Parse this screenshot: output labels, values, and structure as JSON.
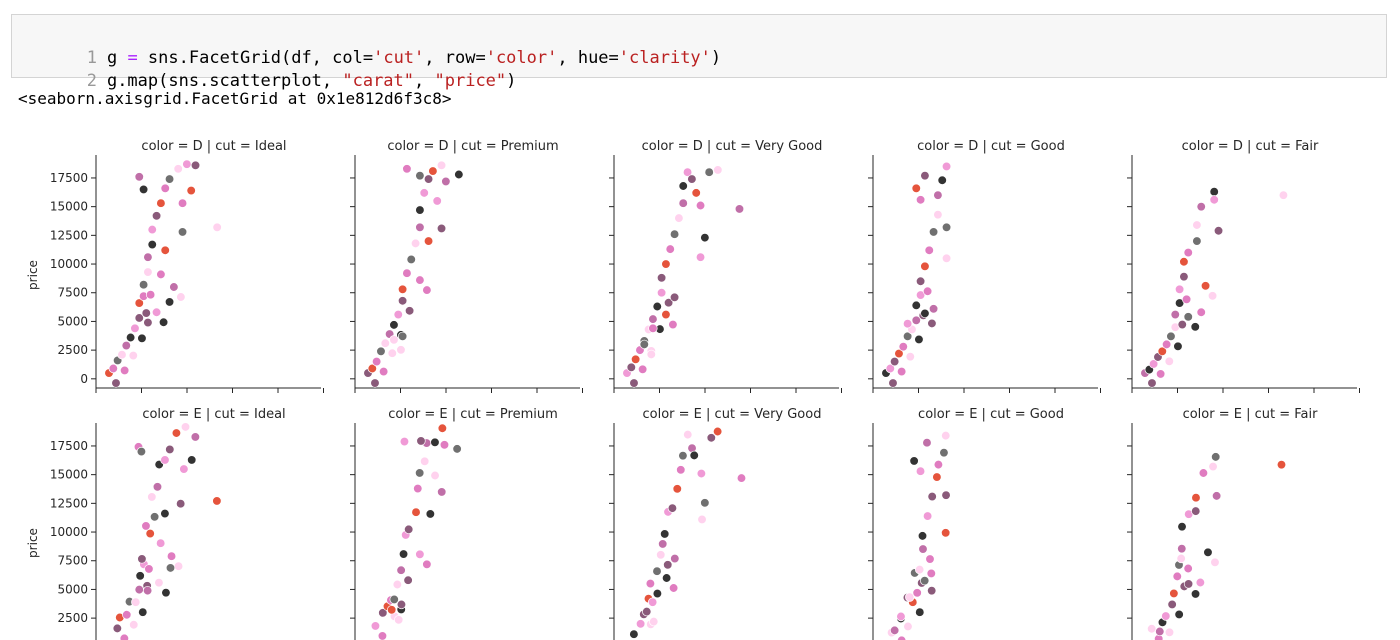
{
  "cell": {
    "lines": [
      {
        "num": "1",
        "tokens": [
          [
            "g",
            ""
          ],
          [
            " = ",
            "op"
          ],
          [
            "sns.FacetGrid(df, col=",
            ""
          ],
          [
            "'cut'",
            "str"
          ],
          [
            ", row=",
            ""
          ],
          [
            "'color'",
            "str"
          ],
          [
            ", hue=",
            ""
          ],
          [
            "'clarity'",
            "str"
          ],
          [
            ")",
            ""
          ]
        ]
      },
      {
        "num": "2",
        "tokens": [
          [
            "g.map(sns.scatterplot, ",
            ""
          ],
          [
            "\"carat\"",
            "str"
          ],
          [
            ", ",
            ""
          ],
          [
            "\"price\"",
            "str"
          ],
          [
            ")",
            ""
          ]
        ]
      }
    ]
  },
  "output_text": "<seaborn.axisgrid.FacetGrid at 0x1e812d6f3c8>",
  "chart_data": {
    "type": "scatter",
    "ylabel": "price",
    "y_ticks": [
      0,
      2500,
      5000,
      7500,
      10000,
      12500,
      15000,
      17500
    ],
    "ylim": [
      -800,
      19500
    ],
    "xlim": [
      0,
      5.2
    ],
    "grid": false,
    "row_titles": [
      "color = D",
      "color = E"
    ],
    "col_titles": [
      "cut = Ideal",
      "cut = Premium",
      "cut = Very Good",
      "cut = Good",
      "cut = Fair"
    ],
    "facet_titles": [
      [
        "color = D | cut = Ideal",
        "color = D | cut = Premium",
        "color = D | cut = Very Good",
        "color = D | cut = Good",
        "color = D | cut = Fair"
      ],
      [
        "color = E | cut = Ideal",
        "color = E | cut = Premium",
        "color = E | cut = Very Good",
        "color = E | cut = Good",
        "color = E | cut = Fair"
      ]
    ],
    "hue_colors": [
      "#e5543c",
      "#333333",
      "#707070",
      "#8a5a7a",
      "#c06fa8",
      "#e07cc0",
      "#f09ad6",
      "#ffd2ee"
    ],
    "panels": [
      {
        "color": "D",
        "cut": "Ideal",
        "points": [
          [
            0.3,
            500
          ],
          [
            0.4,
            900
          ],
          [
            0.5,
            1600
          ],
          [
            0.6,
            2100
          ],
          [
            0.7,
            2900
          ],
          [
            0.8,
            3600
          ],
          [
            0.9,
            4400
          ],
          [
            1.0,
            5300
          ],
          [
            1.0,
            6600
          ],
          [
            1.1,
            7200
          ],
          [
            1.1,
            8200
          ],
          [
            1.2,
            9300
          ],
          [
            1.2,
            10600
          ],
          [
            1.3,
            11700
          ],
          [
            1.3,
            13000
          ],
          [
            1.4,
            14200
          ],
          [
            1.5,
            15300
          ],
          [
            1.6,
            16600
          ],
          [
            1.7,
            17400
          ],
          [
            1.9,
            18300
          ],
          [
            1.0,
            17600
          ],
          [
            1.1,
            16500
          ],
          [
            2.1,
            18700
          ],
          [
            2.3,
            18600
          ],
          [
            2.2,
            16400
          ],
          [
            2.0,
            15300
          ],
          [
            2.0,
            12800
          ],
          [
            2.8,
            13200
          ],
          [
            1.8,
            8000
          ],
          [
            1.7,
            6700
          ],
          [
            1.4,
            5800
          ],
          [
            1.2,
            4900
          ],
          [
            1.6,
            11200
          ],
          [
            1.5,
            9100
          ]
        ]
      },
      {
        "color": "D",
        "cut": "Premium",
        "points": [
          [
            0.3,
            500
          ],
          [
            0.4,
            900
          ],
          [
            0.5,
            1500
          ],
          [
            0.6,
            2400
          ],
          [
            0.7,
            3100
          ],
          [
            0.8,
            3900
          ],
          [
            0.9,
            4700
          ],
          [
            1.0,
            5600
          ],
          [
            1.1,
            6800
          ],
          [
            1.1,
            7800
          ],
          [
            1.2,
            9200
          ],
          [
            1.3,
            10400
          ],
          [
            1.4,
            11800
          ],
          [
            1.5,
            13200
          ],
          [
            1.5,
            14700
          ],
          [
            1.6,
            16200
          ],
          [
            1.7,
            17400
          ],
          [
            1.8,
            18100
          ],
          [
            1.2,
            18300
          ],
          [
            1.5,
            17700
          ],
          [
            2.0,
            18600
          ],
          [
            2.1,
            17200
          ],
          [
            2.4,
            17800
          ],
          [
            1.9,
            15500
          ],
          [
            2.0,
            13100
          ],
          [
            1.7,
            12000
          ],
          [
            1.5,
            8600
          ],
          [
            1.1,
            3700
          ],
          [
            0.9,
            3400
          ]
        ]
      },
      {
        "color": "D",
        "cut": "Very Good",
        "points": [
          [
            0.3,
            500
          ],
          [
            0.4,
            1000
          ],
          [
            0.5,
            1700
          ],
          [
            0.6,
            2500
          ],
          [
            0.7,
            3300
          ],
          [
            0.8,
            4300
          ],
          [
            0.9,
            5200
          ],
          [
            1.0,
            6300
          ],
          [
            1.1,
            7500
          ],
          [
            1.1,
            8800
          ],
          [
            1.2,
            10000
          ],
          [
            1.3,
            11300
          ],
          [
            1.4,
            12600
          ],
          [
            1.5,
            14000
          ],
          [
            1.6,
            15300
          ],
          [
            1.6,
            16800
          ],
          [
            1.7,
            18000
          ],
          [
            1.8,
            17400
          ],
          [
            1.9,
            16200
          ],
          [
            2.0,
            15100
          ],
          [
            2.2,
            18000
          ],
          [
            2.4,
            18200
          ],
          [
            2.9,
            14800
          ],
          [
            2.1,
            12300
          ],
          [
            2.0,
            10600
          ],
          [
            1.4,
            7100
          ],
          [
            1.2,
            5600
          ],
          [
            0.9,
            4400
          ],
          [
            0.7,
            3000
          ]
        ]
      },
      {
        "color": "D",
        "cut": "Good",
        "points": [
          [
            0.3,
            500
          ],
          [
            0.4,
            900
          ],
          [
            0.5,
            1500
          ],
          [
            0.6,
            2200
          ],
          [
            0.7,
            2800
          ],
          [
            0.8,
            3700
          ],
          [
            0.9,
            4300
          ],
          [
            1.0,
            5100
          ],
          [
            1.0,
            6400
          ],
          [
            1.1,
            7300
          ],
          [
            1.1,
            8500
          ],
          [
            1.2,
            9800
          ],
          [
            1.3,
            11200
          ],
          [
            1.4,
            12800
          ],
          [
            1.5,
            14300
          ],
          [
            1.5,
            16000
          ],
          [
            1.6,
            17300
          ],
          [
            1.7,
            18500
          ],
          [
            1.2,
            17700
          ],
          [
            1.0,
            16600
          ],
          [
            1.1,
            15600
          ],
          [
            1.7,
            13200
          ],
          [
            1.7,
            10500
          ],
          [
            1.4,
            6100
          ],
          [
            1.2,
            5700
          ],
          [
            0.8,
            4800
          ]
        ]
      },
      {
        "color": "D",
        "cut": "Fair",
        "points": [
          [
            0.3,
            500
          ],
          [
            0.4,
            800
          ],
          [
            0.5,
            1300
          ],
          [
            0.6,
            1900
          ],
          [
            0.7,
            2400
          ],
          [
            0.8,
            3000
          ],
          [
            0.9,
            3700
          ],
          [
            1.0,
            4500
          ],
          [
            1.0,
            5600
          ],
          [
            1.1,
            6600
          ],
          [
            1.1,
            7800
          ],
          [
            1.2,
            8900
          ],
          [
            1.2,
            10200
          ],
          [
            1.3,
            11000
          ],
          [
            1.5,
            12000
          ],
          [
            1.5,
            13400
          ],
          [
            1.6,
            15000
          ],
          [
            1.9,
            16300
          ],
          [
            1.9,
            15600
          ],
          [
            2.0,
            12900
          ],
          [
            1.7,
            8100
          ],
          [
            1.6,
            5800
          ],
          [
            1.3,
            5400
          ],
          [
            3.5,
            16000
          ]
        ]
      }
    ]
  }
}
